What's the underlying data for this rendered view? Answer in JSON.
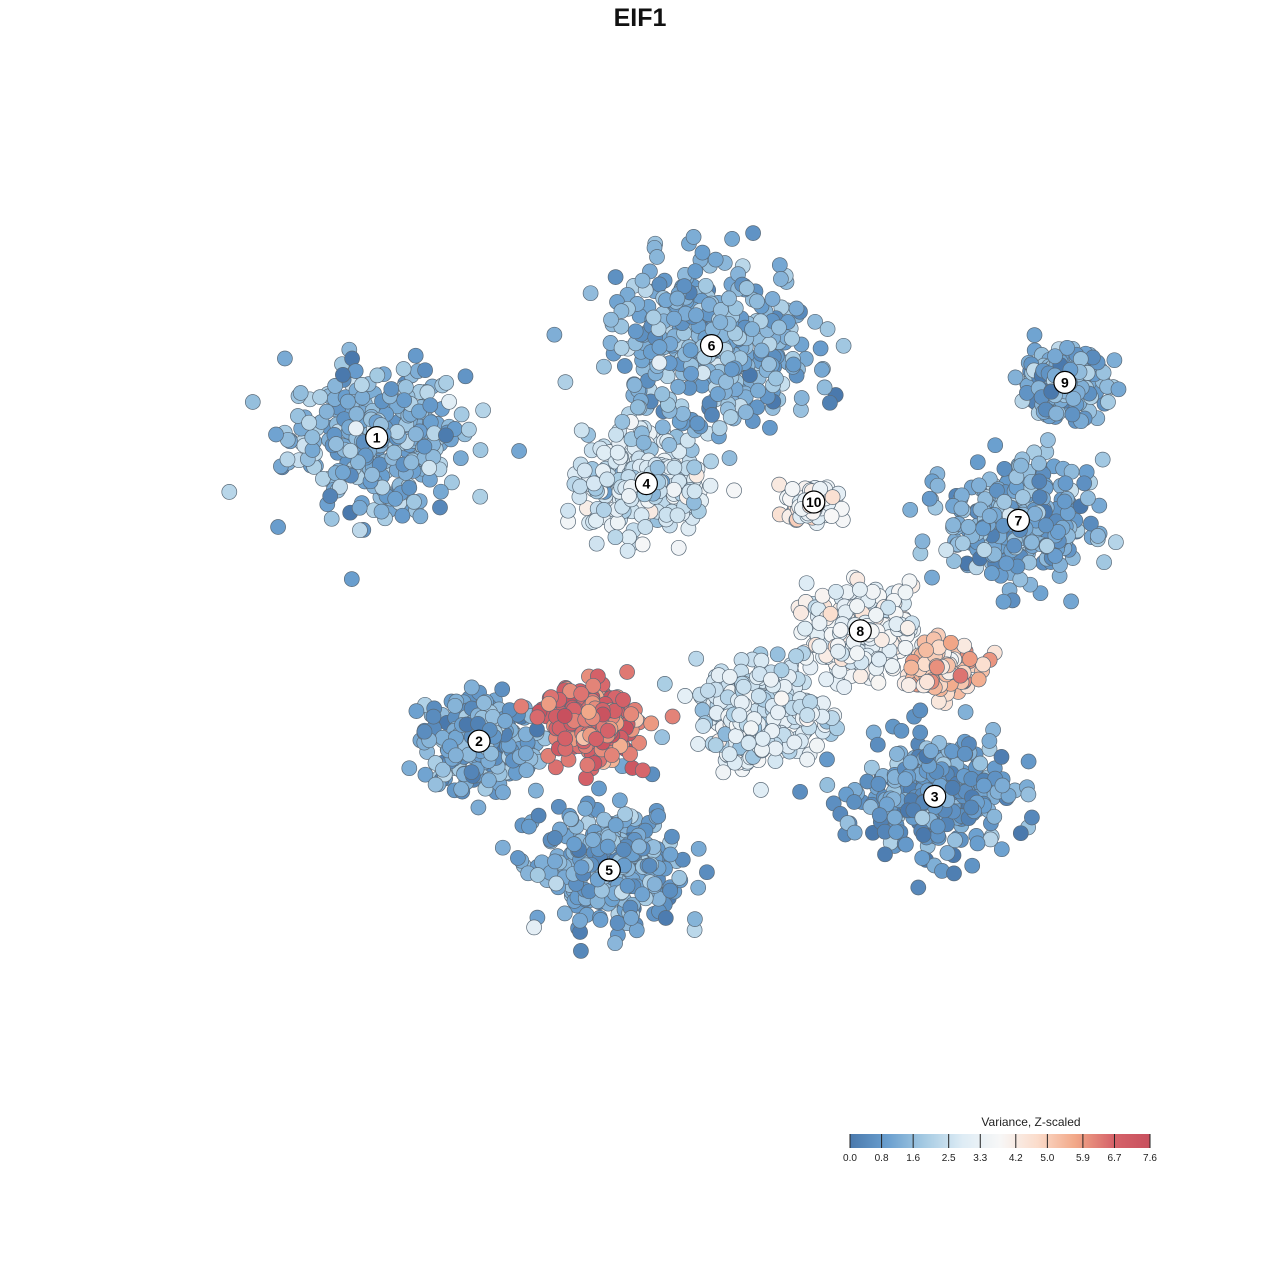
{
  "chart_data": {
    "type": "scatter",
    "title": "EIF1",
    "legend": {
      "title": "Variance, Z-scaled",
      "ticks": [
        "0.0",
        "0.8",
        "1.6",
        "2.5",
        "3.3",
        "4.2",
        "5.0",
        "5.9",
        "6.7",
        "7.6"
      ],
      "range": [
        0.0,
        7.6
      ],
      "colors": [
        "#4a79ad",
        "#6a9fcf",
        "#a6cbe3",
        "#deecf5",
        "#f7f7f7",
        "#fbdccb",
        "#f2a888",
        "#d6646a",
        "#c8505e"
      ],
      "placement": "bottom-right"
    },
    "clusters": [
      {
        "label": "1",
        "x": 0.19,
        "y": 0.72,
        "value": 1.4,
        "spread": 0.085
      },
      {
        "label": "2",
        "x": 0.3,
        "y": 0.39,
        "value": 1.1,
        "spread": 0.055
      },
      {
        "label": "3",
        "x": 0.79,
        "y": 0.33,
        "value": 0.8,
        "spread": 0.07
      },
      {
        "label": "4",
        "x": 0.48,
        "y": 0.67,
        "value": 2.7,
        "spread": 0.06
      },
      {
        "label": "5",
        "x": 0.44,
        "y": 0.25,
        "value": 1.1,
        "spread": 0.07
      },
      {
        "label": "6",
        "x": 0.55,
        "y": 0.82,
        "value": 1.3,
        "spread": 0.1
      },
      {
        "label": "7",
        "x": 0.88,
        "y": 0.63,
        "value": 1.2,
        "spread": 0.07
      },
      {
        "label": "8",
        "x": 0.71,
        "y": 0.51,
        "value": 3.5,
        "spread": 0.05
      },
      {
        "label": "9",
        "x": 0.93,
        "y": 0.78,
        "value": 1.2,
        "spread": 0.04
      },
      {
        "label": "10",
        "x": 0.66,
        "y": 0.65,
        "value": 3.8,
        "spread": 0.02
      },
      {
        "label": "",
        "x": 0.42,
        "y": 0.41,
        "value": 6.4,
        "spread": 0.045
      },
      {
        "label": "",
        "x": 0.6,
        "y": 0.42,
        "value": 2.8,
        "spread": 0.06
      },
      {
        "label": "",
        "x": 0.8,
        "y": 0.47,
        "value": 5.0,
        "spread": 0.03
      }
    ]
  },
  "colors": {
    "point_stroke": "#5a6a78",
    "label_fill": "#ffffff"
  }
}
